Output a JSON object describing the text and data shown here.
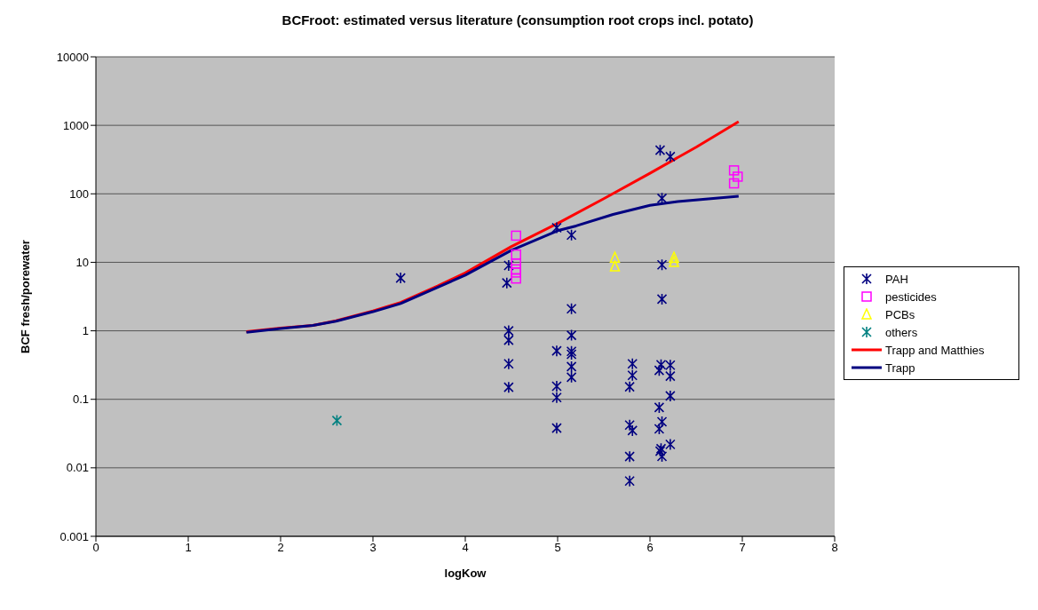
{
  "chart_data": {
    "type": "scatter",
    "title": "BCFroot: estimated versus literature (consumption root crops incl. potato)",
    "xlabel": "logKow",
    "ylabel": "BCF fresh/porewater",
    "xlim": [
      0,
      8
    ],
    "xticks": [
      0,
      1,
      2,
      3,
      4,
      5,
      6,
      7,
      8
    ],
    "ylim": [
      0.001,
      10000
    ],
    "yticks": [
      0.001,
      0.01,
      0.1,
      1,
      10,
      100,
      1000,
      10000
    ],
    "log": "y",
    "grid": "y",
    "legend": "right",
    "series": [
      {
        "name": "PAH",
        "marker": "cross",
        "color": "#000080",
        "x": [
          3.3,
          4.47,
          4.45,
          4.47,
          4.47,
          4.47,
          4.47,
          4.99,
          4.99,
          4.99,
          4.99,
          4.99,
          5.15,
          5.15,
          5.15,
          5.15,
          5.15,
          5.15,
          5.15,
          6.11,
          6.22,
          6.13,
          6.13,
          6.13,
          5.81,
          5.81,
          5.78,
          6.12,
          6.1,
          6.22,
          6.22,
          6.22,
          6.1,
          6.13,
          6.1,
          6.22,
          6.12,
          6.11,
          6.13,
          5.78,
          5.81,
          5.78,
          5.78
        ],
        "values": [
          5.9,
          9,
          5,
          1,
          0.73,
          0.33,
          0.15,
          32,
          0.51,
          0.155,
          0.106,
          0.038,
          25,
          2.1,
          0.86,
          0.5,
          0.455,
          0.3,
          0.21,
          433,
          350,
          86,
          9.2,
          2.9,
          0.33,
          0.224,
          0.152,
          0.32,
          0.264,
          0.315,
          0.218,
          0.112,
          0.076,
          0.047,
          0.037,
          0.022,
          0.019,
          0.0175,
          0.0147,
          0.042,
          0.035,
          0.0146,
          0.0064
        ]
      },
      {
        "name": "pesticides",
        "marker": "square",
        "color": "#ff00ff",
        "x": [
          4.55,
          4.55,
          4.55,
          4.55,
          4.55,
          4.55,
          6.91,
          6.95,
          6.91
        ],
        "values": [
          24.5,
          13,
          9.6,
          7.9,
          7.1,
          5.8,
          220,
          178,
          142
        ]
      },
      {
        "name": "PCBs",
        "marker": "triangle",
        "color": "#ffff00",
        "x": [
          5.62,
          5.62,
          6.26,
          6.26
        ],
        "values": [
          11.7,
          8.7,
          11.7,
          10.1
        ]
      },
      {
        "name": "others",
        "marker": "cross",
        "color": "#008080",
        "x": [
          2.61
        ],
        "values": [
          0.049
        ]
      },
      {
        "name": "Trapp and Matthies",
        "type": "line",
        "marker": "none",
        "color": "#ff0000",
        "x": [
          1.63,
          2,
          2.35,
          2.6,
          3.0,
          3.3,
          3.7,
          4.0,
          4.5,
          5,
          5.5,
          6,
          6.5,
          6.96
        ],
        "values": [
          0.97,
          1.1,
          1.2,
          1.4,
          1.95,
          2.6,
          4.5,
          7,
          17,
          37,
          85,
          200,
          480,
          1130
        ]
      },
      {
        "name": "Trapp",
        "type": "line",
        "marker": "none",
        "color": "#000080",
        "x": [
          1.63,
          2,
          2.35,
          2.6,
          3.0,
          3.3,
          3.7,
          4.0,
          4.5,
          5,
          5.2,
          5.6,
          6.0,
          6.3,
          6.96
        ],
        "values": [
          0.95,
          1.08,
          1.2,
          1.38,
          1.9,
          2.5,
          4.3,
          6.5,
          15,
          29,
          34,
          50,
          68,
          77,
          92
        ]
      }
    ]
  }
}
